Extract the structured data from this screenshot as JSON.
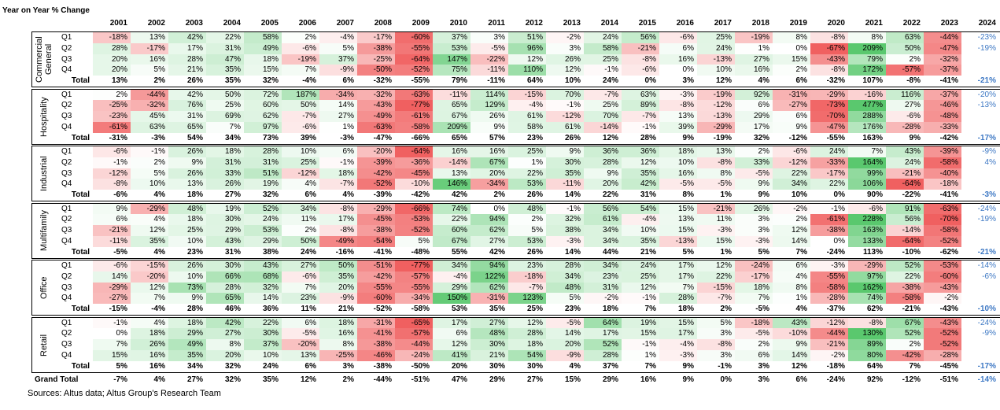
{
  "title": "Year on Year % Change",
  "columns": [
    "2001",
    "2002",
    "2003",
    "2004",
    "2005",
    "2006",
    "2007",
    "2008",
    "2009",
    "2010",
    "2011",
    "2012",
    "2013",
    "2014",
    "2015",
    "2016",
    "2017",
    "2018",
    "2019",
    "2020",
    "2021",
    "2022",
    "2023",
    "2024"
  ],
  "groups": [
    {
      "name": "Commercial General",
      "rows": [
        {
          "label": "Q1",
          "values": [
            "-18%",
            "13%",
            "42%",
            "22%",
            "58%",
            "2%",
            "-4%",
            "-17%",
            "-60%",
            "37%",
            "3%",
            "51%",
            "-2%",
            "24%",
            "56%",
            "-6%",
            "25%",
            "-19%",
            "8%",
            "-8%",
            "8%",
            "63%",
            "-44%",
            "-23%"
          ]
        },
        {
          "label": "Q2",
          "values": [
            "28%",
            "-17%",
            "17%",
            "31%",
            "49%",
            "-6%",
            "5%",
            "-38%",
            "-55%",
            "53%",
            "-5%",
            "96%",
            "3%",
            "58%",
            "-21%",
            "6%",
            "24%",
            "1%",
            "0%",
            "-67%",
            "209%",
            "50%",
            "-47%",
            "-19%"
          ]
        },
        {
          "label": "Q3",
          "values": [
            "20%",
            "16%",
            "28%",
            "47%",
            "18%",
            "-19%",
            "37%",
            "-25%",
            "-64%",
            "147%",
            "-22%",
            "12%",
            "26%",
            "25%",
            "-8%",
            "16%",
            "-13%",
            "27%",
            "15%",
            "-43%",
            "79%",
            "2%",
            "-32%",
            null
          ]
        },
        {
          "label": "Q4",
          "values": [
            "20%",
            "5%",
            "21%",
            "35%",
            "15%",
            "7%",
            "-9%",
            "-50%",
            "-52%",
            "75%",
            "-11%",
            "110%",
            "12%",
            "-1%",
            "-6%",
            "0%",
            "10%",
            "16%",
            "2%",
            "-8%",
            "172%",
            "-57%",
            "-37%",
            null
          ]
        },
        {
          "label": "Total",
          "values": [
            "13%",
            "2%",
            "26%",
            "35%",
            "32%",
            "-4%",
            "6%",
            "-32%",
            "-55%",
            "79%",
            "-11%",
            "64%",
            "10%",
            "24%",
            "0%",
            "3%",
            "12%",
            "4%",
            "6%",
            "-32%",
            "107%",
            "-8%",
            "-41%",
            "-21%"
          ]
        }
      ]
    },
    {
      "name": "Hospitality",
      "rows": [
        {
          "label": "Q1",
          "values": [
            "2%",
            "-44%",
            "42%",
            "50%",
            "72%",
            "187%",
            "-34%",
            "-32%",
            "-63%",
            "-11%",
            "114%",
            "-15%",
            "70%",
            "-7%",
            "63%",
            "-3%",
            "-19%",
            "92%",
            "-31%",
            "-29%",
            "-16%",
            "116%",
            "-37%",
            "-20%"
          ]
        },
        {
          "label": "Q2",
          "values": [
            "-25%",
            "-32%",
            "76%",
            "25%",
            "60%",
            "50%",
            "14%",
            "-43%",
            "-77%",
            "65%",
            "129%",
            "-4%",
            "-1%",
            "25%",
            "89%",
            "-8%",
            "-12%",
            "6%",
            "-27%",
            "-73%",
            "477%",
            "27%",
            "-46%",
            "-13%"
          ]
        },
        {
          "label": "Q3",
          "values": [
            "-23%",
            "45%",
            "31%",
            "69%",
            "62%",
            "-7%",
            "27%",
            "-49%",
            "-61%",
            "67%",
            "26%",
            "61%",
            "-12%",
            "70%",
            "-7%",
            "13%",
            "-13%",
            "29%",
            "6%",
            "-70%",
            "288%",
            "-6%",
            "-48%",
            null
          ]
        },
        {
          "label": "Q4",
          "values": [
            "-61%",
            "63%",
            "65%",
            "7%",
            "97%",
            "-6%",
            "1%",
            "-63%",
            "-58%",
            "209%",
            "9%",
            "58%",
            "61%",
            "-14%",
            "-1%",
            "39%",
            "-29%",
            "17%",
            "9%",
            "-47%",
            "176%",
            "-28%",
            "-33%",
            null
          ]
        },
        {
          "label": "Total",
          "values": [
            "-31%",
            "-3%",
            "54%",
            "34%",
            "73%",
            "39%",
            "-3%",
            "-47%",
            "-66%",
            "65%",
            "57%",
            "23%",
            "26%",
            "12%",
            "28%",
            "9%",
            "-19%",
            "32%",
            "-12%",
            "-55%",
            "163%",
            "9%",
            "-42%",
            "-17%"
          ]
        }
      ]
    },
    {
      "name": "Industrial",
      "rows": [
        {
          "label": "Q1",
          "values": [
            "-6%",
            "-1%",
            "26%",
            "18%",
            "28%",
            "10%",
            "6%",
            "-20%",
            "-64%",
            "16%",
            "16%",
            "25%",
            "9%",
            "36%",
            "36%",
            "18%",
            "13%",
            "2%",
            "-6%",
            "24%",
            "7%",
            "43%",
            "-39%",
            "-9%"
          ]
        },
        {
          "label": "Q2",
          "values": [
            "-1%",
            "2%",
            "9%",
            "31%",
            "31%",
            "25%",
            "-1%",
            "-39%",
            "-36%",
            "-14%",
            "67%",
            "1%",
            "30%",
            "28%",
            "12%",
            "10%",
            "-8%",
            "33%",
            "-12%",
            "-33%",
            "164%",
            "24%",
            "-58%",
            "4%"
          ]
        },
        {
          "label": "Q3",
          "values": [
            "-12%",
            "5%",
            "26%",
            "33%",
            "51%",
            "-12%",
            "18%",
            "-42%",
            "-45%",
            "13%",
            "20%",
            "22%",
            "35%",
            "9%",
            "35%",
            "16%",
            "8%",
            "-5%",
            "22%",
            "-17%",
            "99%",
            "-21%",
            "-40%",
            null
          ]
        },
        {
          "label": "Q4",
          "values": [
            "-8%",
            "10%",
            "13%",
            "26%",
            "19%",
            "4%",
            "-7%",
            "-52%",
            "-10%",
            "146%",
            "-34%",
            "53%",
            "-11%",
            "20%",
            "42%",
            "-5%",
            "-5%",
            "9%",
            "34%",
            "22%",
            "106%",
            "-64%",
            "-18%",
            null
          ]
        },
        {
          "label": "Total",
          "values": [
            "-6%",
            "4%",
            "18%",
            "27%",
            "32%",
            "6%",
            "4%",
            "-39%",
            "-42%",
            "42%",
            "2%",
            "26%",
            "14%",
            "22%",
            "31%",
            "8%",
            "1%",
            "9%",
            "10%",
            "0%",
            "90%",
            "-22%",
            "-41%",
            "-3%"
          ]
        }
      ]
    },
    {
      "name": "Multifamily",
      "rows": [
        {
          "label": "Q1",
          "values": [
            "9%",
            "-29%",
            "48%",
            "19%",
            "52%",
            "34%",
            "-8%",
            "-29%",
            "-66%",
            "74%",
            "0%",
            "48%",
            "-1%",
            "56%",
            "54%",
            "15%",
            "-21%",
            "26%",
            "-2%",
            "-1%",
            "-6%",
            "91%",
            "-63%",
            "-24%"
          ]
        },
        {
          "label": "Q2",
          "values": [
            "6%",
            "4%",
            "18%",
            "30%",
            "24%",
            "11%",
            "17%",
            "-45%",
            "-53%",
            "22%",
            "94%",
            "2%",
            "32%",
            "61%",
            "-4%",
            "13%",
            "11%",
            "3%",
            "2%",
            "-61%",
            "228%",
            "56%",
            "-70%",
            "-19%"
          ]
        },
        {
          "label": "Q3",
          "values": [
            "-21%",
            "12%",
            "25%",
            "29%",
            "53%",
            "2%",
            "-8%",
            "-38%",
            "-52%",
            "60%",
            "62%",
            "5%",
            "38%",
            "34%",
            "10%",
            "15%",
            "-3%",
            "3%",
            "12%",
            "-38%",
            "163%",
            "-14%",
            "-58%",
            null
          ]
        },
        {
          "label": "Q4",
          "values": [
            "-11%",
            "35%",
            "10%",
            "43%",
            "29%",
            "50%",
            "-49%",
            "-54%",
            "5%",
            "67%",
            "27%",
            "53%",
            "-3%",
            "34%",
            "35%",
            "-13%",
            "15%",
            "-3%",
            "14%",
            "0%",
            "133%",
            "-64%",
            "-52%",
            null
          ]
        },
        {
          "label": "Total",
          "values": [
            "-5%",
            "4%",
            "23%",
            "31%",
            "38%",
            "24%",
            "-16%",
            "-41%",
            "-48%",
            "55%",
            "42%",
            "26%",
            "14%",
            "44%",
            "21%",
            "5%",
            "1%",
            "5%",
            "7%",
            "-24%",
            "113%",
            "-10%",
            "-62%",
            "-21%"
          ]
        }
      ]
    },
    {
      "name": "Office",
      "rows": [
        {
          "label": "Q1",
          "values": [
            "-6%",
            "-15%",
            "26%",
            "30%",
            "43%",
            "27%",
            "50%",
            "-51%",
            "-77%",
            "34%",
            "94%",
            "23%",
            "28%",
            "34%",
            "24%",
            "17%",
            "12%",
            "-24%",
            "6%",
            "-3%",
            "-29%",
            "52%",
            "-53%",
            "-14%"
          ]
        },
        {
          "label": "Q2",
          "values": [
            "14%",
            "-20%",
            "10%",
            "66%",
            "68%",
            "-6%",
            "35%",
            "-42%",
            "-57%",
            "-4%",
            "122%",
            "-18%",
            "34%",
            "23%",
            "25%",
            "17%",
            "22%",
            "-17%",
            "4%",
            "-55%",
            "97%",
            "22%",
            "-60%",
            "-6%"
          ]
        },
        {
          "label": "Q3",
          "values": [
            "-29%",
            "12%",
            "73%",
            "28%",
            "32%",
            "7%",
            "20%",
            "-55%",
            "-55%",
            "29%",
            "62%",
            "-7%",
            "48%",
            "31%",
            "12%",
            "7%",
            "-15%",
            "18%",
            "8%",
            "-58%",
            "162%",
            "-38%",
            "-43%",
            null
          ]
        },
        {
          "label": "Q4",
          "values": [
            "-27%",
            "7%",
            "9%",
            "65%",
            "14%",
            "23%",
            "-9%",
            "-60%",
            "-34%",
            "150%",
            "-31%",
            "123%",
            "5%",
            "-2%",
            "-1%",
            "28%",
            "-7%",
            "7%",
            "1%",
            "-28%",
            "74%",
            "-58%",
            "-2%",
            null
          ]
        },
        {
          "label": "Total",
          "values": [
            "-15%",
            "-4%",
            "28%",
            "46%",
            "36%",
            "11%",
            "21%",
            "-52%",
            "-58%",
            "53%",
            "35%",
            "25%",
            "23%",
            "18%",
            "7%",
            "18%",
            "2%",
            "-5%",
            "4%",
            "-37%",
            "62%",
            "-21%",
            "-43%",
            "-10%"
          ]
        }
      ]
    },
    {
      "name": "Retail",
      "rows": [
        {
          "label": "Q1",
          "values": [
            "-1%",
            "4%",
            "18%",
            "42%",
            "22%",
            "6%",
            "18%",
            "-31%",
            "-65%",
            "17%",
            "27%",
            "12%",
            "-5%",
            "64%",
            "19%",
            "15%",
            "5%",
            "-18%",
            "43%",
            "-12%",
            "-8%",
            "67%",
            "-43%",
            "-24%"
          ]
        },
        {
          "label": "Q2",
          "values": [
            "0%",
            "18%",
            "29%",
            "27%",
            "30%",
            "-5%",
            "16%",
            "-41%",
            "-57%",
            "6%",
            "48%",
            "28%",
            "14%",
            "17%",
            "15%",
            "17%",
            "3%",
            "-5%",
            "-10%",
            "-44%",
            "130%",
            "52%",
            "-52%",
            "-9%"
          ]
        },
        {
          "label": "Q3",
          "values": [
            "7%",
            "26%",
            "49%",
            "8%",
            "37%",
            "-20%",
            "8%",
            "-38%",
            "-44%",
            "12%",
            "30%",
            "18%",
            "20%",
            "52%",
            "-1%",
            "-4%",
            "-8%",
            "2%",
            "9%",
            "-21%",
            "89%",
            "2%",
            "-52%",
            null
          ]
        },
        {
          "label": "Q4",
          "values": [
            "15%",
            "16%",
            "35%",
            "20%",
            "10%",
            "13%",
            "-25%",
            "-46%",
            "-24%",
            "41%",
            "21%",
            "54%",
            "-9%",
            "28%",
            "1%",
            "-3%",
            "3%",
            "6%",
            "14%",
            "-2%",
            "80%",
            "-42%",
            "-28%",
            null
          ]
        },
        {
          "label": "Total",
          "values": [
            "5%",
            "16%",
            "34%",
            "32%",
            "24%",
            "6%",
            "3%",
            "-38%",
            "-50%",
            "20%",
            "30%",
            "30%",
            "4%",
            "37%",
            "7%",
            "9%",
            "-1%",
            "3%",
            "12%",
            "-18%",
            "64%",
            "7%",
            "-45%",
            "-17%"
          ]
        }
      ]
    }
  ],
  "grand_total": {
    "label": "Grand Total",
    "values": [
      "-7%",
      "4%",
      "27%",
      "32%",
      "35%",
      "12%",
      "2%",
      "-44%",
      "-51%",
      "47%",
      "29%",
      "27%",
      "15%",
      "29%",
      "16%",
      "9%",
      "0%",
      "3%",
      "6%",
      "-24%",
      "92%",
      "-12%",
      "-51%",
      "-14%"
    ]
  },
  "source": "Sources: Altus data; Altus Group's Research Team"
}
